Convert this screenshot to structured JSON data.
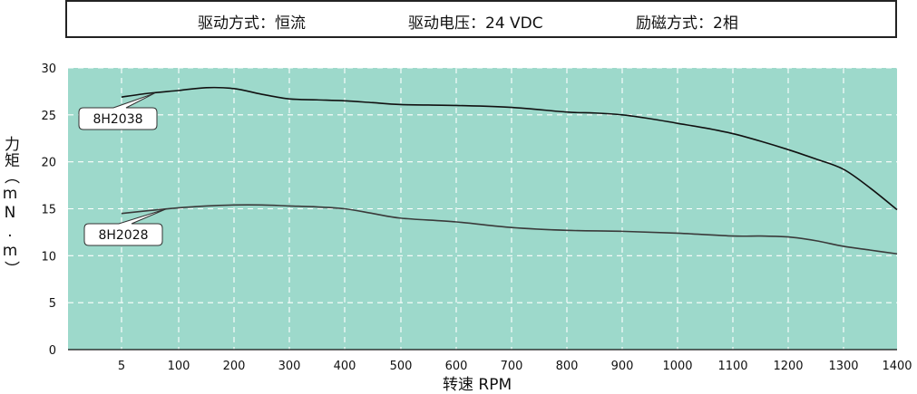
{
  "header": {
    "items": [
      "驱动方式：恒流",
      "驱动电压：24 VDC",
      "励磁方式：2相"
    ]
  },
  "chart_data": {
    "type": "line",
    "ylabel": "力矩（mN.m）",
    "xlabel": "转速 RPM",
    "x_ticks": [
      "5",
      "100",
      "200",
      "300",
      "400",
      "500",
      "600",
      "700",
      "800",
      "900",
      "1000",
      "1100",
      "1200",
      "1300",
      "1400"
    ],
    "ylim": [
      0,
      30
    ],
    "y_ticks": [
      0,
      5,
      10,
      15,
      20,
      25,
      30
    ],
    "grid": true,
    "background_color": "#9dd9cb",
    "series": [
      {
        "name": "8H2038",
        "color": "#111111",
        "x": [
          5,
          50,
          100,
          150,
          200,
          250,
          300,
          350,
          400,
          450,
          500,
          600,
          700,
          800,
          850,
          900,
          950,
          1000,
          1050,
          1100,
          1150,
          1200,
          1250,
          1300,
          1350,
          1400
        ],
        "y": [
          26.9,
          27.3,
          27.6,
          27.9,
          27.8,
          27.2,
          26.7,
          26.6,
          26.5,
          26.3,
          26.1,
          26.0,
          25.8,
          25.3,
          25.2,
          25.0,
          24.6,
          24.1,
          23.6,
          23.0,
          22.2,
          21.3,
          20.3,
          19.2,
          17.2,
          14.9
        ]
      },
      {
        "name": "8H2028",
        "color": "#3a3a3a",
        "x": [
          5,
          50,
          100,
          150,
          200,
          250,
          300,
          350,
          400,
          450,
          500,
          600,
          700,
          800,
          900,
          1000,
          1100,
          1150,
          1200,
          1250,
          1300,
          1350,
          1400
        ],
        "y": [
          14.5,
          14.8,
          15.1,
          15.3,
          15.4,
          15.4,
          15.3,
          15.2,
          15.0,
          14.5,
          14.0,
          13.6,
          13.0,
          12.7,
          12.6,
          12.4,
          12.1,
          12.1,
          12.0,
          11.6,
          11.0,
          10.6,
          10.2
        ]
      }
    ],
    "annotations": [
      {
        "text": "8H2038",
        "series": 0
      },
      {
        "text": "8H2028",
        "series": 1
      }
    ]
  }
}
